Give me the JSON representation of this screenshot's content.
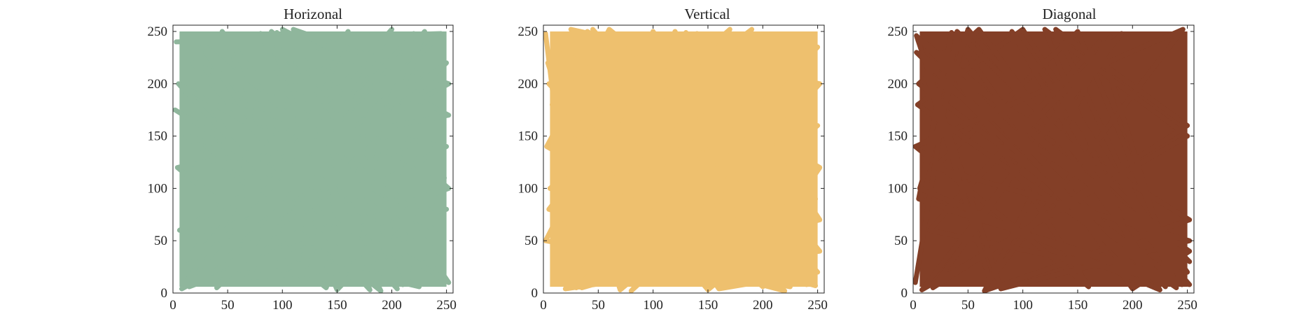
{
  "chart_data": [
    {
      "type": "line",
      "title": "Horizonal",
      "xlabel": "",
      "ylabel": "",
      "xlim": [
        0,
        256
      ],
      "ylim": [
        0,
        256
      ],
      "xticks": [
        0,
        50,
        100,
        150,
        200,
        250
      ],
      "yticks": [
        0,
        50,
        100,
        150,
        200,
        250
      ],
      "grid": false,
      "legend": "none",
      "color": "#8fb69c",
      "series": [
        {
          "x": [
            3,
            245,
            20,
            230,
            40,
            250,
            10,
            200,
            60,
            240,
            5,
            180,
            90,
            252,
            15,
            220,
            120,
            35,
            250,
            8,
            160,
            70,
            246,
            25,
            210,
            100,
            252,
            4,
            140,
            230,
            50,
            250,
            12,
            190,
            80,
            238,
            30,
            170,
            110,
            252,
            6,
            225,
            45,
            150,
            248,
            18,
            205,
            95,
            252,
            2
          ],
          "y": [
            240,
            248,
            8,
            245,
            5,
            220,
            30,
            252,
            12,
            60,
            200,
            3,
            250,
            100,
            6,
            248,
            10,
            180,
            140,
            4,
            250,
            15,
            30,
            240,
            8,
            252,
            170,
            120,
            5,
            250,
            20,
            80,
            150,
            2,
            248,
            40,
            230,
            10,
            252,
            200,
            60,
            6,
            250,
            3,
            110,
            220,
            4,
            249,
            10,
            175
          ]
        }
      ]
    },
    {
      "type": "line",
      "title": "Vertical",
      "xlabel": "",
      "ylabel": "",
      "xlim": [
        0,
        256
      ],
      "ylim": [
        0,
        256
      ],
      "xticks": [
        0,
        50,
        100,
        150,
        200,
        250
      ],
      "yticks": [
        0,
        50,
        100,
        150,
        200,
        250
      ],
      "grid": false,
      "legend": "none",
      "color": "#eec06e",
      "series": [
        {
          "x": [
            2,
            30,
            250,
            10,
            220,
            5,
            180,
            252,
            40,
            200,
            8,
            150,
            248,
            60,
            3,
            230,
            90,
            252,
            20,
            170,
            6,
            240,
            120,
            15,
            250,
            70,
            4,
            210,
            140,
            252,
            35,
            190,
            10,
            245,
            100,
            2,
            225,
            55,
            250,
            160,
            12,
            235,
            80,
            252,
            25,
            205,
            130,
            5,
            248,
            45
          ],
          "y": [
            248,
            5,
            235,
            60,
            2,
            200,
            8,
            120,
            250,
            6,
            180,
            3,
            90,
            252,
            140,
            10,
            246,
            40,
            4,
            252,
            100,
            8,
            250,
            30,
            160,
            3,
            220,
            12,
            248,
            70,
            5,
            252,
            110,
            15,
            250,
            50,
            6,
            245,
            20,
            4,
            230,
            150,
            2,
            200,
            252,
            10,
            249,
            80,
            7,
            252
          ]
        }
      ]
    },
    {
      "type": "line",
      "title": "Diagonal",
      "xlabel": "",
      "ylabel": "",
      "xlim": [
        0,
        256
      ],
      "ylim": [
        0,
        256
      ],
      "xticks": [
        0,
        50,
        100,
        150,
        200,
        250
      ],
      "yticks": [
        0,
        50,
        100,
        150,
        200,
        250
      ],
      "grid": false,
      "legend": "none",
      "color": "#833f27",
      "series": [
        {
          "x": [
            2,
            40,
            252,
            10,
            230,
            60,
            5,
            245,
            150,
            20,
            252,
            80,
            3,
            210,
            120,
            250,
            8,
            190,
            30,
            248,
            100,
            4,
            240,
            170,
            15,
            252,
            50,
            6,
            225,
            90,
            250,
            25,
            160,
            2,
            246,
            70,
            12,
            252,
            200,
            35,
            5,
            238,
            130,
            250,
            18,
            180,
            65,
            252,
            3,
            215
          ],
          "y": [
            10,
            250,
            30,
            240,
            6,
            252,
            200,
            8,
            250,
            120,
            50,
            4,
            246,
            15,
            252,
            150,
            3,
            248,
            80,
            10,
            252,
            180,
            5,
            240,
            60,
            8,
            252,
            100,
            3,
            250,
            20,
            230,
            6,
            140,
            252,
            12,
            210,
            40,
            4,
            249,
            90,
            10,
            252,
            160,
            5,
            245,
            2,
            70,
            230,
            8
          ]
        }
      ]
    }
  ]
}
